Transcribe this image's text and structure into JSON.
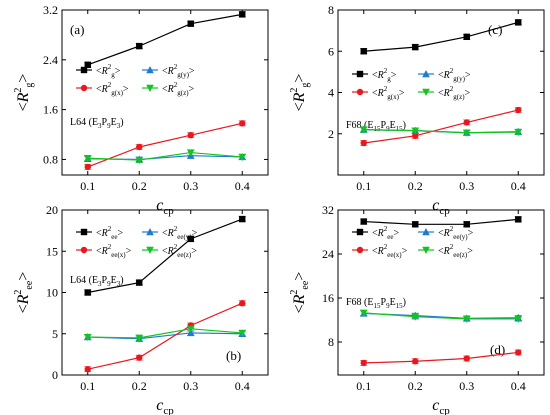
{
  "chart_data": [
    {
      "type": "line",
      "panel_label": "(a)",
      "annotation": {
        "base": "L64 (E",
        "parts": [
          [
            "3",
            "s"
          ],
          [
            "P",
            "n"
          ],
          [
            "9",
            "s"
          ],
          [
            "E",
            "n"
          ],
          [
            "3",
            "s"
          ],
          [
            ")",
            "n"
          ]
        ]
      },
      "ylabel": {
        "main": "<R",
        "sup": "2",
        "sub": "g",
        "close": ">"
      },
      "xlabel": {
        "main": "c",
        "sub": "cp"
      },
      "xlim": [
        0.05,
        0.45
      ],
      "ylim": [
        0.55,
        3.2
      ],
      "xticks": [
        0.1,
        0.2,
        0.3,
        0.4
      ],
      "xtick_labels": [
        "0.1",
        "0.2",
        "0.3",
        "0.4"
      ],
      "yticks": [
        0.8,
        1.6,
        2.4,
        3.2
      ],
      "ytick_labels": [
        "0.8",
        "1.6",
        "2.4",
        "3.2"
      ],
      "x": [
        0.1,
        0.2,
        0.3,
        0.4
      ],
      "series": [
        {
          "name": "g",
          "label_sub": "g",
          "color": "#000000",
          "marker": "square",
          "values": [
            2.32,
            2.62,
            2.98,
            3.13
          ]
        },
        {
          "name": "g(y)",
          "label_sub": "g(y)",
          "color": "#1f7ad1",
          "marker": "triangle-up",
          "values": [
            0.81,
            0.8,
            0.86,
            0.84
          ]
        },
        {
          "name": "g(x)",
          "label_sub": "g(x)",
          "color": "#e8191e",
          "marker": "circle",
          "values": [
            0.68,
            1.0,
            1.19,
            1.38
          ]
        },
        {
          "name": "g(z)",
          "label_sub": "g(z)",
          "color": "#12c41f",
          "marker": "triangle-down",
          "values": [
            0.82,
            0.79,
            0.91,
            0.84
          ]
        }
      ],
      "legend": {
        "placement": "upper-left"
      }
    },
    {
      "type": "line",
      "panel_label": "(c)",
      "annotation": {
        "base": "F68 (E",
        "parts": [
          [
            "15",
            "s"
          ],
          [
            "P",
            "n"
          ],
          [
            "9",
            "s"
          ],
          [
            "E",
            "n"
          ],
          [
            "15",
            "s"
          ],
          [
            ")",
            "n"
          ]
        ]
      },
      "ylabel": {
        "main": "<R",
        "sup": "2",
        "sub": "g",
        "close": ">"
      },
      "xlabel": {
        "main": "c",
        "sub": "cp"
      },
      "xlim": [
        0.05,
        0.45
      ],
      "ylim": [
        0,
        8
      ],
      "xticks": [
        0.1,
        0.2,
        0.3,
        0.4
      ],
      "xtick_labels": [
        "0.1",
        "0.2",
        "0.3",
        "0.4"
      ],
      "yticks": [
        2,
        4,
        6,
        8
      ],
      "ytick_labels": [
        "2",
        "4",
        "6",
        "8"
      ],
      "x": [
        0.1,
        0.2,
        0.3,
        0.4
      ],
      "series": [
        {
          "name": "g",
          "label_sub": "g",
          "color": "#000000",
          "marker": "square",
          "values": [
            6.0,
            6.2,
            6.7,
            7.4
          ]
        },
        {
          "name": "g(y)",
          "label_sub": "g(y)",
          "color": "#1f7ad1",
          "marker": "triangle-up",
          "values": [
            2.2,
            2.15,
            2.05,
            2.1
          ]
        },
        {
          "name": "g(x)",
          "label_sub": "g(x)",
          "color": "#e8191e",
          "marker": "circle",
          "values": [
            1.55,
            1.9,
            2.55,
            3.15
          ]
        },
        {
          "name": "g(z)",
          "label_sub": "g(z)",
          "color": "#12c41f",
          "marker": "triangle-down",
          "values": [
            2.2,
            2.15,
            2.05,
            2.08
          ]
        }
      ],
      "legend": {
        "placement": "middle-left"
      }
    },
    {
      "type": "line",
      "panel_label": "(b)",
      "annotation": {
        "base": "L64 (E",
        "parts": [
          [
            "3",
            "s"
          ],
          [
            "P",
            "n"
          ],
          [
            "9",
            "s"
          ],
          [
            "E",
            "n"
          ],
          [
            "3",
            "s"
          ],
          [
            ")",
            "n"
          ]
        ]
      },
      "ylabel": {
        "main": "<R",
        "sup": "2",
        "sub": "ee",
        "close": ">"
      },
      "xlabel": {
        "main": "c",
        "sub": "cp"
      },
      "xlim": [
        0.05,
        0.45
      ],
      "ylim": [
        0,
        20
      ],
      "xticks": [
        0.1,
        0.2,
        0.3,
        0.4
      ],
      "xtick_labels": [
        "0.1",
        "0.2",
        "0.3",
        "0.4"
      ],
      "yticks": [
        0,
        5,
        10,
        15,
        20
      ],
      "ytick_labels": [
        "0",
        "5",
        "10",
        "15",
        "20"
      ],
      "x": [
        0.1,
        0.2,
        0.3,
        0.4
      ],
      "series": [
        {
          "name": "ee",
          "label_sub": "ee",
          "color": "#000000",
          "marker": "square",
          "values": [
            10.0,
            11.2,
            16.5,
            18.9
          ]
        },
        {
          "name": "ee(y)",
          "label_sub": "ee(y)",
          "color": "#1f7ad1",
          "marker": "triangle-up",
          "values": [
            4.6,
            4.4,
            5.1,
            5.0
          ]
        },
        {
          "name": "ee(x)",
          "label_sub": "ee(x)",
          "color": "#e8191e",
          "marker": "circle",
          "values": [
            0.7,
            2.1,
            6.0,
            8.7
          ]
        },
        {
          "name": "ee(z)",
          "label_sub": "ee(z)",
          "color": "#12c41f",
          "marker": "triangle-down",
          "values": [
            4.6,
            4.5,
            5.6,
            5.1
          ]
        }
      ],
      "legend": {
        "placement": "upper-left"
      }
    },
    {
      "type": "line",
      "panel_label": "(d)",
      "annotation": {
        "base": "F68 (E",
        "parts": [
          [
            "15",
            "s"
          ],
          [
            "P",
            "n"
          ],
          [
            "9",
            "s"
          ],
          [
            "E",
            "n"
          ],
          [
            "15",
            "s"
          ],
          [
            ")",
            "n"
          ]
        ]
      },
      "ylabel": {
        "main": "<R",
        "sup": "2",
        "sub": "ee",
        "close": ">"
      },
      "xlabel": {
        "main": "c",
        "sub": "cp"
      },
      "xlim": [
        0.05,
        0.45
      ],
      "ylim": [
        2,
        32
      ],
      "xticks": [
        0.1,
        0.2,
        0.3,
        0.4
      ],
      "xtick_labels": [
        "0.1",
        "0.2",
        "0.3",
        "0.4"
      ],
      "yticks": [
        8,
        16,
        24,
        32
      ],
      "ytick_labels": [
        "8",
        "16",
        "24",
        "32"
      ],
      "x": [
        0.1,
        0.2,
        0.3,
        0.4
      ],
      "series": [
        {
          "name": "ee",
          "label_sub": "ee",
          "color": "#000000",
          "marker": "square",
          "values": [
            29.9,
            29.4,
            29.4,
            30.3
          ]
        },
        {
          "name": "ee(y)",
          "label_sub": "ee(y)",
          "color": "#1f7ad1",
          "marker": "triangle-up",
          "values": [
            13.2,
            12.8,
            12.3,
            12.4
          ]
        },
        {
          "name": "ee(x)",
          "label_sub": "ee(x)",
          "color": "#e8191e",
          "marker": "circle",
          "values": [
            4.2,
            4.5,
            5.0,
            6.1
          ]
        },
        {
          "name": "ee(z)",
          "label_sub": "ee(z)",
          "color": "#12c41f",
          "marker": "triangle-down",
          "values": [
            13.3,
            12.6,
            12.2,
            12.2
          ]
        }
      ],
      "legend": {
        "placement": "upper-left"
      }
    }
  ]
}
